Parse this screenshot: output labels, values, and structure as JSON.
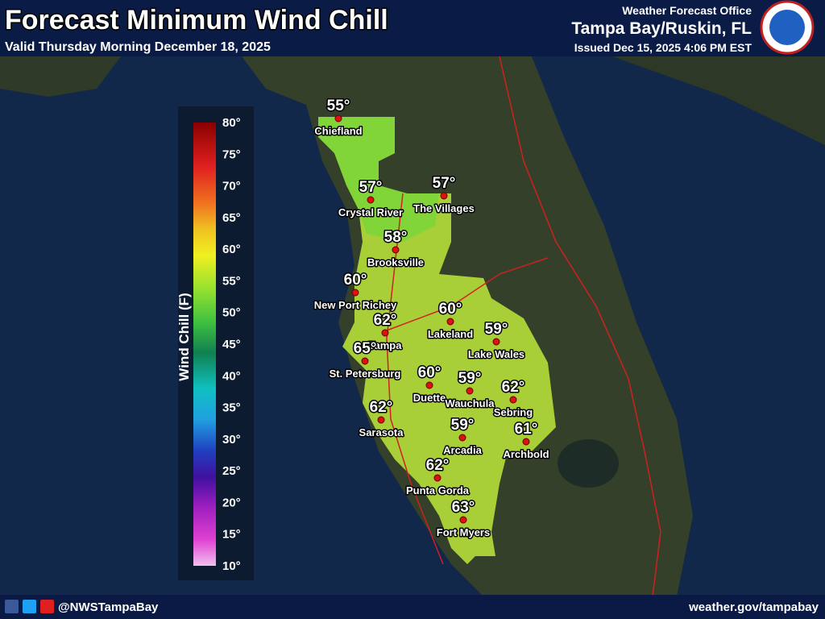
{
  "header": {
    "title": "Forecast Minimum Wind Chill",
    "subtitle": "Valid Thursday Morning December 18, 2025",
    "office": "Weather Forecast Office",
    "office_name": "Tampa Bay/Ruskin, FL",
    "issued": "Issued Dec 15, 2025 4:06 PM EST"
  },
  "legend": {
    "title": "Wind Chill (F)",
    "ticks": [
      "80°",
      "75°",
      "70°",
      "65°",
      "60°",
      "55°",
      "50°",
      "45°",
      "40°",
      "35°",
      "30°",
      "25°",
      "20°",
      "15°",
      "10°"
    ]
  },
  "cities": [
    {
      "name": "Chiefland",
      "temp": "55°"
    },
    {
      "name": "Crystal River",
      "temp": "57°"
    },
    {
      "name": "The Villages",
      "temp": "57°"
    },
    {
      "name": "Brooksville",
      "temp": "58°"
    },
    {
      "name": "New Port Richey",
      "temp": "60°"
    },
    {
      "name": "Tampa",
      "temp": "62°"
    },
    {
      "name": "St. Petersburg",
      "temp": "65°"
    },
    {
      "name": "Lakeland",
      "temp": "60°"
    },
    {
      "name": "Lake Wales",
      "temp": "59°"
    },
    {
      "name": "Duette",
      "temp": "60°"
    },
    {
      "name": "Wauchula",
      "temp": "59°"
    },
    {
      "name": "Sebring",
      "temp": "62°"
    },
    {
      "name": "Sarasota",
      "temp": "62°"
    },
    {
      "name": "Arcadia",
      "temp": "59°"
    },
    {
      "name": "Archbold",
      "temp": "61°"
    },
    {
      "name": "Punta Gorda",
      "temp": "62°"
    },
    {
      "name": "Fort Myers",
      "temp": "63°"
    }
  ],
  "footer": {
    "handle": "@NWSTampaBay",
    "url": "weather.gov/tampabay"
  }
}
